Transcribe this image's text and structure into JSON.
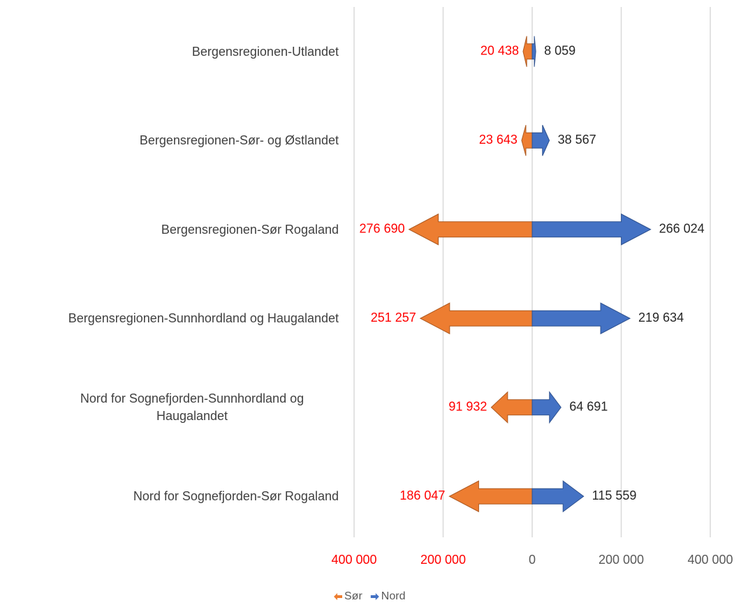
{
  "chart_data": {
    "type": "arrow_bar",
    "categories": [
      "Bergensregionen-Utlandet",
      "Bergensregionen-Sør- og Østlandet",
      "Bergensregionen-Sør Rogaland",
      "Bergensregionen-Sunnhordland og Haugalandet",
      "Nord for Sognefjorden-Sunnhordland og Haugalandet",
      "Nord for Sognefjorden-Sør Rogaland"
    ],
    "series": [
      {
        "name": "Sør",
        "color": "#ed7d31",
        "label_color": "#ff0000",
        "values": [
          -20438,
          -23643,
          -276690,
          -251257,
          -91932,
          -186047
        ],
        "value_labels": [
          "20 438",
          "23 643",
          "276 690",
          "251 257",
          "91 932",
          "186 047"
        ]
      },
      {
        "name": "Nord",
        "color": "#4472c4",
        "label_color": "#262626",
        "values": [
          8059,
          38567,
          266024,
          219634,
          64691,
          115559
        ],
        "value_labels": [
          "8 059",
          "38 567",
          "266 024",
          "219 634",
          "64 691",
          "115 559"
        ]
      }
    ],
    "xlim": [
      -400000,
      400000
    ],
    "xticks": [
      {
        "value": -400000,
        "label": "400 000"
      },
      {
        "value": -200000,
        "label": "200 000"
      },
      0,
      {
        "value": 200000,
        "label": "200 000"
      },
      {
        "value": 400000,
        "label": "400 000"
      }
    ],
    "grid": true,
    "legend": "bottom"
  }
}
